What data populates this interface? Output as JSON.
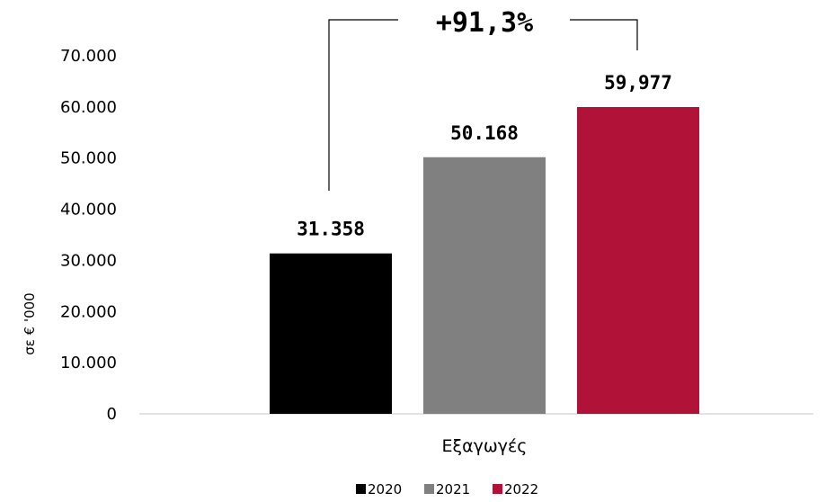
{
  "chart_data": {
    "type": "bar",
    "categories": [
      "Εξαγωγές"
    ],
    "series": [
      {
        "name": "2020",
        "values": [
          31358
        ],
        "label": "31.358",
        "color": "#000000"
      },
      {
        "name": "2021",
        "values": [
          50168
        ],
        "label": "50.168",
        "color": "#808080"
      },
      {
        "name": "2022",
        "values": [
          59977
        ],
        "label": "59,977",
        "color": "#B01238"
      }
    ],
    "ylabel": "σε € '000",
    "ylim": [
      0,
      70000
    ],
    "yticks": [
      0,
      10000,
      20000,
      30000,
      40000,
      50000,
      60000,
      70000
    ],
    "ytick_labels": [
      "0",
      "10.000",
      "20.000",
      "30.000",
      "40.000",
      "50.000",
      "60.000",
      "70.000"
    ],
    "grid": false,
    "legend_position": "bottom",
    "annotation": {
      "text": "+91,3%",
      "from_series": "2020",
      "to_series": "2022"
    }
  }
}
